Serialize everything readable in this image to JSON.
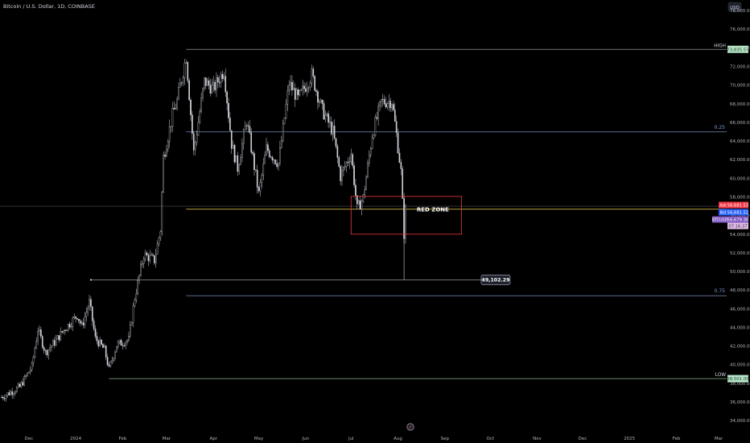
{
  "header": {
    "symbol_title": "Bitcoin / U.S. Dollar, 1D, COINBASE",
    "currency_button": "USD",
    "bottom_icon": "clock-reset-icon"
  },
  "colors": {
    "background": "#000000",
    "candle": "#d1d4dc",
    "level_line": "#9598a1",
    "fib_line": "#7b8db4",
    "high_label_bg": "#b7e4c7",
    "low_label_bg": "#b7e4c7",
    "red_zone": "#f23645",
    "horizontal_ray": "#f5d14b",
    "ask_badge": "#f23645",
    "bid_badge": "#2962ff",
    "last_badge": "#7e57c2",
    "price_badge": "#e1bee7"
  },
  "chart_data": {
    "type": "candlestick",
    "y_axis": {
      "min": 34000,
      "max": 79000,
      "ticks": [
        "78,000.00",
        "76,000.00",
        "74,000.00",
        "72,000.00",
        "70,000.00",
        "68,000.00",
        "66,000.00",
        "64,000.00",
        "62,000.00",
        "60,000.00",
        "58,000.00",
        "56,000.00",
        "54,000.00",
        "52,000.00",
        "50,000.00",
        "48,000.00",
        "46,000.00",
        "44,000.00",
        "42,000.00",
        "40,000.00",
        "38,000.00",
        "36,000.00",
        "34,000.00"
      ]
    },
    "x_axis": {
      "labels": [
        "Dec",
        "2024",
        "Feb",
        "Mar",
        "Apr",
        "May",
        "Jun",
        "Jul",
        "Aug",
        "Sep",
        "Oct",
        "Nov",
        "Dec",
        "2025",
        "Feb",
        "Mar"
      ],
      "start": "2023-11-13",
      "label_dates": [
        "2023-12-01",
        "2024-01-01",
        "2024-02-01",
        "2024-03-01",
        "2024-04-01",
        "2024-05-01",
        "2024-06-01",
        "2024-07-01",
        "2024-08-01",
        "2024-09-01",
        "2024-10-01",
        "2024-11-01",
        "2024-12-01",
        "2025-01-01",
        "2025-02-01",
        "2025-03-01"
      ]
    },
    "close_path": [
      [
        "2023-11-13",
        36500
      ],
      [
        "2023-11-25",
        37600
      ],
      [
        "2023-12-03",
        39800
      ],
      [
        "2023-12-07",
        43800
      ],
      [
        "2023-12-12",
        41300
      ],
      [
        "2023-12-19",
        42600
      ],
      [
        "2023-12-24",
        43700
      ],
      [
        "2024-01-02",
        45300
      ],
      [
        "2024-01-05",
        44100
      ],
      [
        "2024-01-10",
        46700
      ],
      [
        "2024-01-14",
        42800
      ],
      [
        "2024-01-20",
        41600
      ],
      [
        "2024-01-23",
        39500
      ],
      [
        "2024-01-28",
        42100
      ],
      [
        "2024-02-05",
        42700
      ],
      [
        "2024-02-09",
        47200
      ],
      [
        "2024-02-15",
        51800
      ],
      [
        "2024-02-22",
        51200
      ],
      [
        "2024-02-26",
        54500
      ],
      [
        "2024-02-28",
        62300
      ],
      [
        "2024-03-05",
        66800
      ],
      [
        "2024-03-08",
        68300
      ],
      [
        "2024-03-14",
        73100
      ],
      [
        "2024-03-19",
        62800
      ],
      [
        "2024-03-26",
        70400
      ],
      [
        "2024-04-01",
        69600
      ],
      [
        "2024-04-08",
        71600
      ],
      [
        "2024-04-13",
        63700
      ],
      [
        "2024-04-17",
        61100
      ],
      [
        "2024-04-23",
        66200
      ],
      [
        "2024-05-01",
        58300
      ],
      [
        "2024-05-06",
        63200
      ],
      [
        "2024-05-14",
        61600
      ],
      [
        "2024-05-21",
        70200
      ],
      [
        "2024-05-27",
        68500
      ],
      [
        "2024-06-05",
        71100
      ],
      [
        "2024-06-12",
        67300
      ],
      [
        "2024-06-19",
        65000
      ],
      [
        "2024-06-24",
        60200
      ],
      [
        "2024-07-01",
        62700
      ],
      [
        "2024-07-05",
        56700
      ],
      [
        "2024-07-09",
        57900
      ],
      [
        "2024-07-15",
        64700
      ],
      [
        "2024-07-21",
        68200
      ],
      [
        "2024-07-28",
        68300
      ],
      [
        "2024-07-31",
        64700
      ],
      [
        "2024-08-03",
        60700
      ],
      [
        "2024-08-05",
        54000
      ],
      [
        "2024-08-06",
        56620
      ]
    ],
    "series": [
      {
        "name": "HIGH",
        "value": 73835.57
      },
      {
        "name": "0.25",
        "value": 64975
      },
      {
        "name": "RED ZONE",
        "value": 56679.3
      },
      {
        "name": "0.75",
        "value": 47402
      },
      {
        "name": "LOW",
        "value": 38501.0
      }
    ],
    "levels": {
      "high": {
        "label": "HIGH",
        "value": 73835.57,
        "price": "73,835.57",
        "from_date": "2024-03-14"
      },
      "fib_025": {
        "label": "0.25",
        "value": 64975,
        "from_date": "2024-03-14"
      },
      "fib_075": {
        "label": "0.75",
        "value": 47402,
        "from_date": "2024-03-14"
      },
      "low": {
        "label": "LOW",
        "value": 38501.0,
        "price": "38,501.00",
        "from_date": "2024-01-23"
      },
      "support": {
        "value": 49102.29,
        "label": "49,102.29",
        "from_date": "2024-01-11",
        "to_date": "2024-09-25"
      },
      "ray": {
        "value": 56679.3,
        "from_date": "2024-03-14"
      },
      "grey_line": {
        "value": 57000
      }
    },
    "red_zone": {
      "label": "RED ZONE",
      "from_date": "2024-07-01",
      "to_date": "2024-09-12",
      "top": 58050,
      "bottom": 54000
    },
    "price_badges": {
      "ask": {
        "tag": "Ask",
        "price": "56,681.53"
      },
      "bid": {
        "tag": "Bid",
        "price": "56,681.52"
      },
      "last": {
        "tag": "BTCUSD",
        "price": "56,679.30"
      },
      "countdown": {
        "price": "07:16:37"
      }
    }
  }
}
